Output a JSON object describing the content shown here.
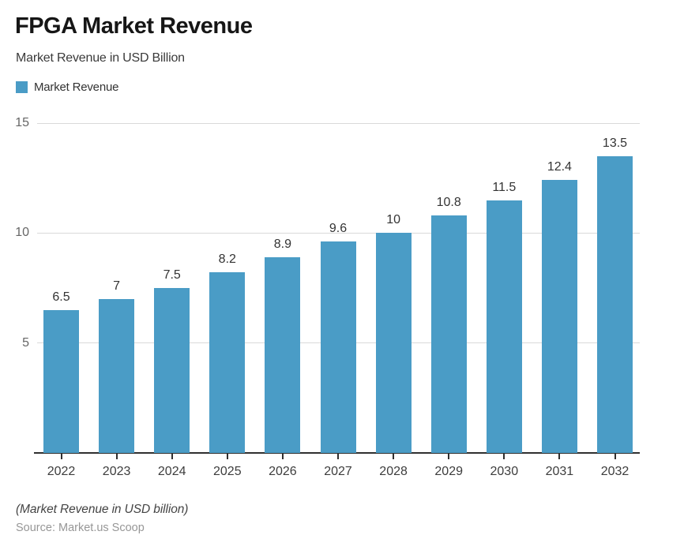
{
  "header": {
    "title": "FPGA Market Revenue",
    "subtitle": "Market Revenue in USD Billion"
  },
  "legend": {
    "label": "Market Revenue"
  },
  "footer": {
    "note": "(Market Revenue in USD billion)",
    "source": "Source: Market.us Scoop"
  },
  "chart_data": {
    "type": "bar",
    "title": "FPGA Market Revenue",
    "subtitle": "Market Revenue in USD Billion",
    "legend": [
      "Market Revenue"
    ],
    "categories": [
      "2022",
      "2023",
      "2024",
      "2025",
      "2026",
      "2027",
      "2028",
      "2029",
      "2030",
      "2031",
      "2032"
    ],
    "values": [
      6.5,
      7,
      7.5,
      8.2,
      8.9,
      9.6,
      10,
      10.8,
      11.5,
      12.4,
      13.5
    ],
    "value_labels": [
      "6.5",
      "7",
      "7.5",
      "8.2",
      "8.9",
      "9.6",
      "10",
      "10.8",
      "11.5",
      "12.4",
      "13.5"
    ],
    "xlabel": "",
    "ylabel": "Market Revenue in USD Billion",
    "ylim": [
      0,
      15
    ],
    "yticks": [
      5,
      10,
      15
    ],
    "grid": true,
    "legend_position": "top-left",
    "bar_color": "#4A9CC6"
  }
}
